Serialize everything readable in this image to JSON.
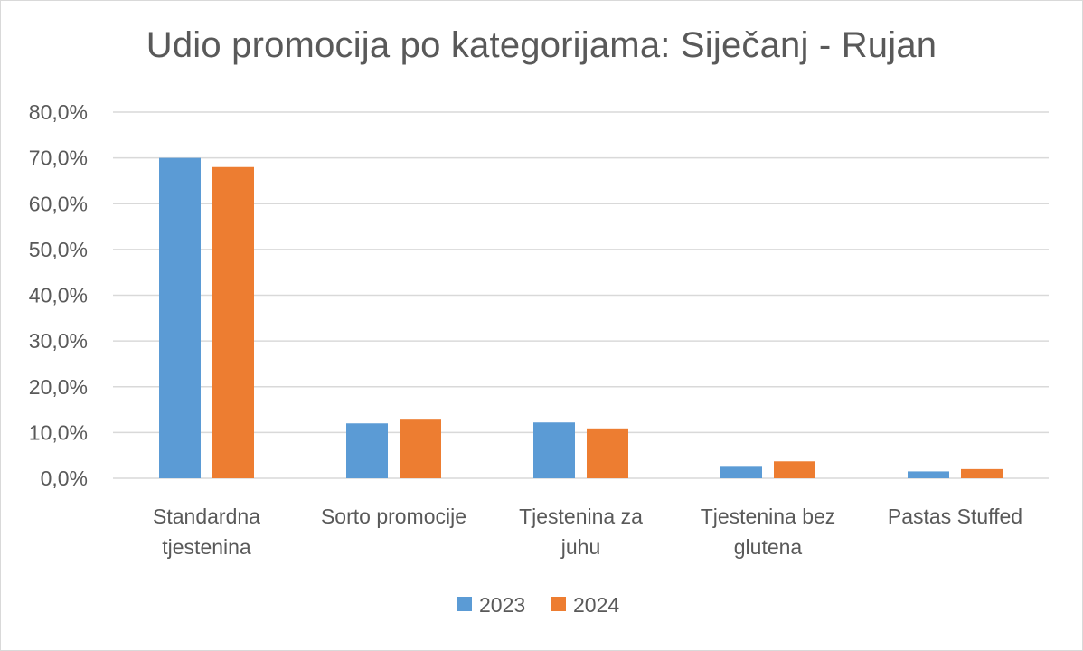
{
  "chart_data": {
    "type": "bar",
    "title": "Udio promocija po kategorijama: Siječanj - Rujan",
    "categories": [
      [
        "Standardna",
        "tjestenina"
      ],
      [
        "Sorto promocije"
      ],
      [
        "Tjestenina za",
        "juhu"
      ],
      [
        "Tjestenina bez",
        "glutena"
      ],
      [
        "Pastas Stuffed"
      ]
    ],
    "series": [
      {
        "name": "2023",
        "color": "#5b9bd5",
        "values": [
          70.0,
          12.0,
          12.2,
          2.7,
          1.5
        ]
      },
      {
        "name": "2024",
        "color": "#ed7d31",
        "values": [
          68.0,
          13.0,
          10.9,
          3.7,
          2.0
        ]
      }
    ],
    "ylim": [
      0,
      80
    ],
    "yticks": [
      0,
      10,
      20,
      30,
      40,
      50,
      60,
      70,
      80
    ],
    "ytick_labels": [
      "0,0%",
      "10,0%",
      "20,0%",
      "30,0%",
      "40,0%",
      "50,0%",
      "60,0%",
      "70,0%",
      "80,0%"
    ],
    "grid": true,
    "legend_position": "bottom",
    "xlabel": "",
    "ylabel": ""
  }
}
